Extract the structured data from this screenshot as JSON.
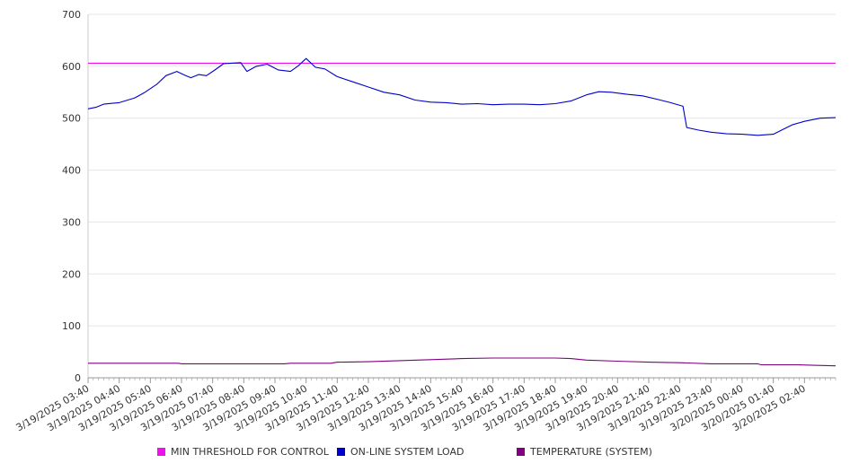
{
  "chart_data": {
    "type": "line",
    "title": "",
    "xlabel": "",
    "ylabel": "",
    "ylim": [
      0,
      700
    ],
    "yticks": [
      0,
      100,
      200,
      300,
      400,
      500,
      600,
      700
    ],
    "grid": "horizontal",
    "legend_position": "bottom",
    "x_tick_labels": [
      "3/19/2025 03:40",
      "3/19/2025 04:40",
      "3/19/2025 05:40",
      "3/19/2025 06:40",
      "3/19/2025 07:40",
      "3/19/2025 08:40",
      "3/19/2025 09:40",
      "3/19/2025 10:40",
      "3/19/2025 11:40",
      "3/19/2025 12:40",
      "3/19/2025 13:40",
      "3/19/2025 14:40",
      "3/19/2025 15:40",
      "3/19/2025 16:40",
      "3/19/2025 17:40",
      "3/19/2025 18:40",
      "3/19/2025 19:40",
      "3/19/2025 20:40",
      "3/19/2025 21:40",
      "3/19/2025 22:40",
      "3/19/2025 23:40",
      "3/20/2025 00:40",
      "3/20/2025 01:40",
      "3/20/2025 02:40"
    ],
    "x_tick_hours": [
      0,
      1,
      2,
      3,
      4,
      5,
      6,
      7,
      8,
      9,
      10,
      11,
      12,
      13,
      14,
      15,
      16,
      17,
      18,
      19,
      20,
      21,
      22,
      23
    ],
    "x_hours_range": [
      0,
      24
    ],
    "series": [
      {
        "name": "MIN THRESHOLD FOR CONTROL",
        "color": "#ee11ee",
        "points": [
          [
            0,
            606
          ],
          [
            24,
            606
          ]
        ]
      },
      {
        "name": "ON-LINE SYSTEM LOAD",
        "color": "#0000cc",
        "points": [
          [
            0,
            518
          ],
          [
            0.25,
            521
          ],
          [
            0.5,
            527
          ],
          [
            1,
            530
          ],
          [
            1.5,
            539
          ],
          [
            1.8,
            549
          ],
          [
            2.2,
            565
          ],
          [
            2.5,
            582
          ],
          [
            2.85,
            590
          ],
          [
            3.1,
            583
          ],
          [
            3.3,
            578
          ],
          [
            3.55,
            584
          ],
          [
            3.8,
            582
          ],
          [
            4.05,
            592
          ],
          [
            4.35,
            605
          ],
          [
            4.9,
            607
          ],
          [
            5.1,
            590
          ],
          [
            5.4,
            600
          ],
          [
            5.75,
            604
          ],
          [
            6.1,
            593
          ],
          [
            6.5,
            590
          ],
          [
            6.75,
            601
          ],
          [
            7.0,
            615
          ],
          [
            7.3,
            598
          ],
          [
            7.6,
            595
          ],
          [
            8.0,
            580
          ],
          [
            8.5,
            570
          ],
          [
            9.0,
            560
          ],
          [
            9.5,
            550
          ],
          [
            10.0,
            545
          ],
          [
            10.5,
            535
          ],
          [
            11.0,
            531
          ],
          [
            11.5,
            530
          ],
          [
            12.0,
            527
          ],
          [
            12.5,
            528
          ],
          [
            13.0,
            526
          ],
          [
            13.5,
            527
          ],
          [
            14.0,
            527
          ],
          [
            14.5,
            526
          ],
          [
            15.0,
            528
          ],
          [
            15.5,
            533
          ],
          [
            16.0,
            545
          ],
          [
            16.4,
            551
          ],
          [
            16.8,
            550
          ],
          [
            17.3,
            546
          ],
          [
            17.8,
            543
          ],
          [
            18.3,
            536
          ],
          [
            18.7,
            530
          ],
          [
            19.1,
            523
          ],
          [
            19.22,
            482
          ],
          [
            19.6,
            477
          ],
          [
            20.0,
            473
          ],
          [
            20.5,
            470
          ],
          [
            21.0,
            469
          ],
          [
            21.5,
            467
          ],
          [
            22.0,
            469
          ],
          [
            22.3,
            478
          ],
          [
            22.6,
            487
          ],
          [
            23.0,
            494
          ],
          [
            23.5,
            500
          ],
          [
            24.0,
            501
          ]
        ]
      },
      {
        "name": "TEMPERATURE (SYSTEM)",
        "color": "#800080",
        "points": [
          [
            0,
            28
          ],
          [
            2.9,
            28
          ],
          [
            3.0,
            27
          ],
          [
            6.3,
            27
          ],
          [
            6.5,
            28
          ],
          [
            7.8,
            28
          ],
          [
            8.0,
            30
          ],
          [
            9.0,
            31
          ],
          [
            10.0,
            33
          ],
          [
            11.0,
            35
          ],
          [
            12.0,
            37
          ],
          [
            13.0,
            38
          ],
          [
            14.0,
            38
          ],
          [
            15.0,
            38
          ],
          [
            15.5,
            37
          ],
          [
            16.0,
            34
          ],
          [
            17.0,
            32
          ],
          [
            18.0,
            30
          ],
          [
            19.0,
            29
          ],
          [
            20.0,
            27
          ],
          [
            21.5,
            27
          ],
          [
            21.6,
            25
          ],
          [
            22.8,
            25
          ],
          [
            23.3,
            24
          ],
          [
            24.0,
            23
          ]
        ]
      }
    ]
  }
}
